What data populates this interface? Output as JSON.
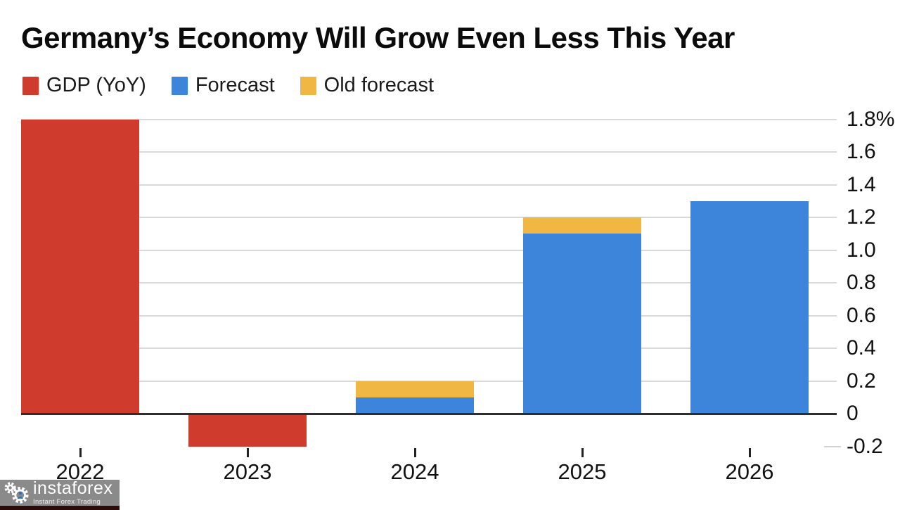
{
  "title": "Germany’s Economy Will Grow Even Less This Year",
  "legend": {
    "items": [
      {
        "label": "GDP (YoY)",
        "color": "#cf3b2d"
      },
      {
        "label": "Forecast",
        "color": "#3d85db"
      },
      {
        "label": "Old forecast",
        "color": "#f0b843"
      }
    ]
  },
  "chart_data": {
    "type": "bar",
    "stacked": true,
    "title": "Germany’s Economy Will Grow Even Less This Year",
    "categories": [
      "2022",
      "2023",
      "2024",
      "2025",
      "2026"
    ],
    "series": [
      {
        "name": "GDP (YoY)",
        "color": "#cf3b2d",
        "values": [
          1.8,
          -0.2,
          null,
          null,
          null
        ]
      },
      {
        "name": "Forecast",
        "color": "#3d85db",
        "values": [
          null,
          null,
          0.1,
          1.1,
          1.3
        ]
      },
      {
        "name": "Old forecast",
        "color": "#f0b843",
        "values": [
          null,
          null,
          0.1,
          0.1,
          null
        ]
      }
    ],
    "old_forecast_totals": {
      "2024": 0.2,
      "2025": 1.2
    },
    "ylabel": "%",
    "ylim": [
      -0.2,
      1.8
    ],
    "yticks": [
      {
        "value": 1.8,
        "label": "1.8%"
      },
      {
        "value": 1.6,
        "label": "1.6"
      },
      {
        "value": 1.4,
        "label": "1.4"
      },
      {
        "value": 1.2,
        "label": "1.2"
      },
      {
        "value": 1.0,
        "label": "1.0"
      },
      {
        "value": 0.8,
        "label": "0.8"
      },
      {
        "value": 0.6,
        "label": "0.6"
      },
      {
        "value": 0.4,
        "label": "0.4"
      },
      {
        "value": 0.2,
        "label": "0.2"
      },
      {
        "value": 0,
        "label": "0"
      },
      {
        "value": -0.2,
        "label": "-0.2"
      }
    ],
    "grid": "horizontal",
    "yaxis_side": "right",
    "legend_position": "top-left"
  },
  "colors": {
    "gdp": "#cf3b2d",
    "forecast": "#3d85db",
    "old_forecast": "#f0b843",
    "gridline": "#d9d9d9",
    "axis": "#2e2e2e",
    "watermark_accent": "#2f6fb5"
  },
  "watermark": {
    "brand": "instaforex",
    "tagline": "Instant Forex Trading"
  }
}
